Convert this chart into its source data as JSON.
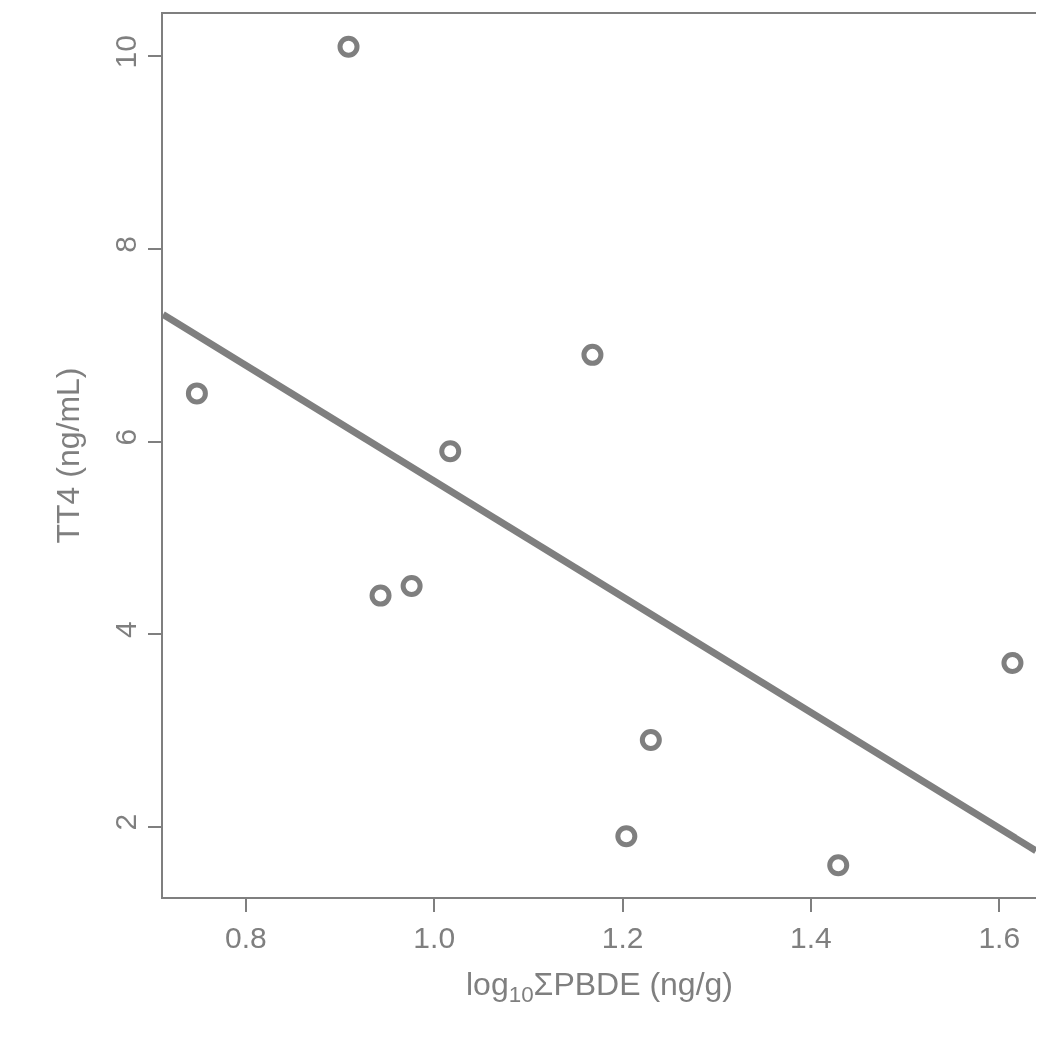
{
  "chart_data": {
    "type": "scatter",
    "xlabel": "log$_{10}$ΣPBDE (ng/g)",
    "ylabel": "TT4 (ng/mL)",
    "series": [
      {
        "color": "#7f7f7f",
        "marker": "circle",
        "x": [
          0.748,
          0.909,
          0.943,
          0.976,
          1.017,
          1.168,
          1.204,
          1.23,
          1.429,
          1.614
        ],
        "values": [
          6.5,
          10.1,
          4.4,
          4.5,
          5.9,
          6.9,
          1.9,
          2.9,
          1.6,
          3.7
        ]
      },
      {
        "type": "line",
        "color": "#7f7f7f",
        "line_style": "solid",
        "x": [
          0.712,
          1.639
        ],
        "values": [
          7.32,
          1.75
        ]
      }
    ],
    "xlim": [
      0.712,
      1.639
    ],
    "ylim": [
      1.27,
      10.44
    ],
    "xticks": [
      0.8,
      {
        "value": 1,
        "label": "1.0"
      },
      1.2,
      1.4,
      1.6
    ],
    "yticks": [
      2,
      4,
      6,
      8,
      10
    ],
    "grid": false,
    "legend": false
  }
}
